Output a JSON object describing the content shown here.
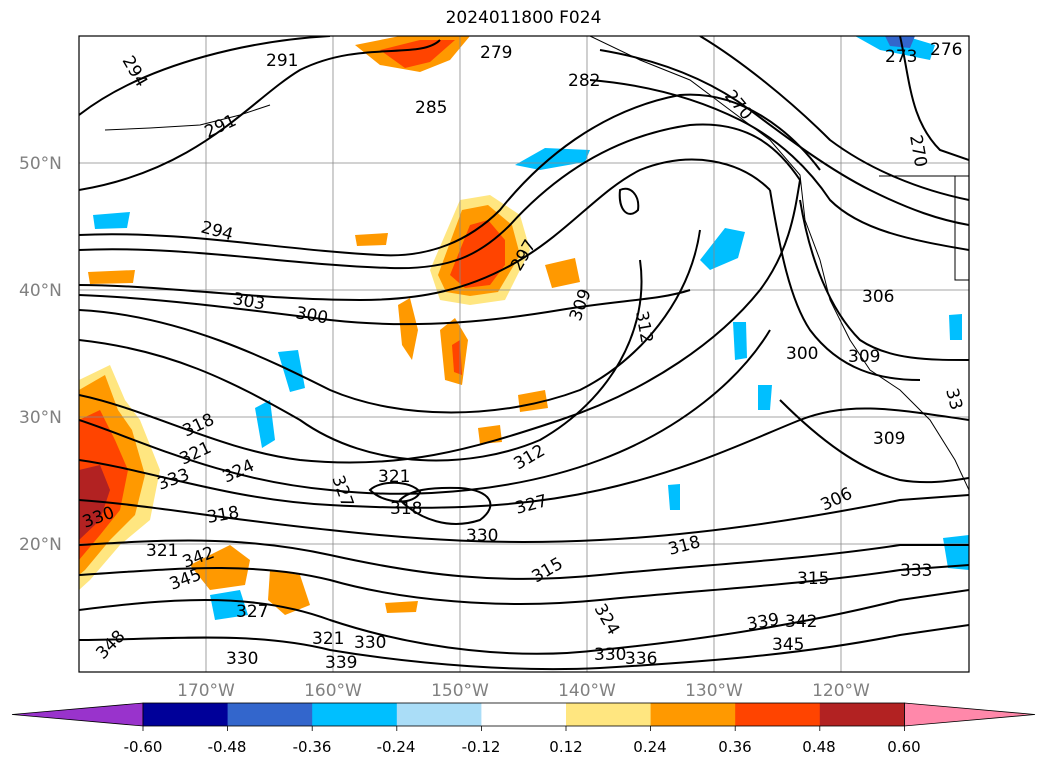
{
  "title": "2024011800 F024",
  "map": {
    "lat_labels": [
      "50°N",
      "40°N",
      "30°N",
      "20°N"
    ],
    "lon_labels": [
      "170°W",
      "160°W",
      "150°W",
      "140°W",
      "130°W",
      "120°W"
    ],
    "contour_labels": [
      "294",
      "291",
      "279",
      "282",
      "285",
      "291",
      "273",
      "276",
      "270",
      "270",
      "294",
      "297",
      "309",
      "312",
      "306",
      "303",
      "300",
      "300",
      "309",
      "318",
      "321",
      "324",
      "333",
      "330",
      "321",
      "318",
      "327",
      "327",
      "330",
      "312",
      "318",
      "315",
      "306",
      "309",
      "318",
      "315",
      "339",
      "342",
      "345",
      "324",
      "330",
      "336",
      "333",
      "321",
      "330",
      "339",
      "345",
      "342",
      "327",
      "348",
      "330",
      "321",
      "33"
    ]
  },
  "colorbar": {
    "tick_labels": [
      "-0.60",
      "-0.48",
      "-0.36",
      "-0.24",
      "-0.12",
      "0.12",
      "0.24",
      "0.36",
      "0.48",
      "0.60"
    ],
    "colors": [
      "#9933cc",
      "#000099",
      "#3366cc",
      "#00bfff",
      "#aaddf7",
      "#ffffff",
      "#ffe680",
      "#ff9900",
      "#ff4400",
      "#b22222",
      "#ff88aa"
    ]
  }
}
